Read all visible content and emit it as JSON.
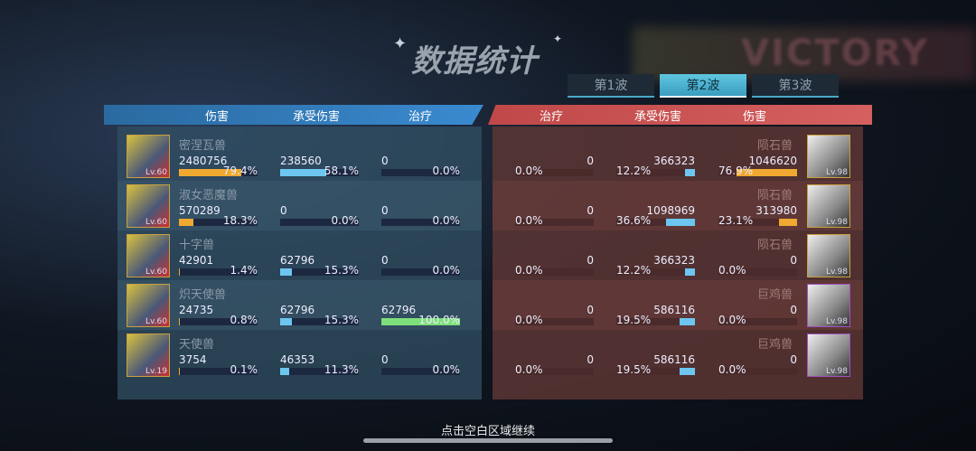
{
  "title": "数据统计",
  "tabs": [
    {
      "label": "第1波",
      "active": false
    },
    {
      "label": "第2波",
      "active": true
    },
    {
      "label": "第3波",
      "active": false
    }
  ],
  "background_text": "VICTORY",
  "left_headers": [
    "伤害",
    "承受伤害",
    "治疗"
  ],
  "right_headers": [
    "治疗",
    "承受伤害",
    "伤害"
  ],
  "colors": {
    "damage": "#f0a830",
    "taken": "#6cc6f0",
    "heal": "#7ee07a"
  },
  "allies": [
    {
      "name": "密涅瓦兽",
      "level": "Lv.60",
      "damage": "2480756",
      "damage_pct": "79.4%",
      "taken": "238560",
      "taken_pct": "58.1%",
      "heal": "0",
      "heal_pct": "0.0%"
    },
    {
      "name": "淑女恶魔兽",
      "level": "Lv.60",
      "damage": "570289",
      "damage_pct": "18.3%",
      "taken": "0",
      "taken_pct": "0.0%",
      "heal": "0",
      "heal_pct": "0.0%"
    },
    {
      "name": "十字兽",
      "level": "Lv.60",
      "damage": "42901",
      "damage_pct": "1.4%",
      "taken": "62796",
      "taken_pct": "15.3%",
      "heal": "0",
      "heal_pct": "0.0%"
    },
    {
      "name": "炽天使兽",
      "level": "Lv.60",
      "damage": "24735",
      "damage_pct": "0.8%",
      "taken": "62796",
      "taken_pct": "15.3%",
      "heal": "62796",
      "heal_pct": "100.0%"
    },
    {
      "name": "天使兽",
      "level": "Lv.19",
      "damage": "3754",
      "damage_pct": "0.1%",
      "taken": "46353",
      "taken_pct": "11.3%",
      "heal": "0",
      "heal_pct": "0.0%"
    }
  ],
  "enemies": [
    {
      "name": "陨石兽",
      "level": "Lv.98",
      "heal": "0",
      "heal_pct": "0.0%",
      "taken": "366323",
      "taken_pct": "12.2%",
      "damage": "1046620",
      "damage_pct": "76.9%"
    },
    {
      "name": "陨石兽",
      "level": "Lv.98",
      "heal": "0",
      "heal_pct": "0.0%",
      "taken": "1098969",
      "taken_pct": "36.6%",
      "damage": "313980",
      "damage_pct": "23.1%"
    },
    {
      "name": "陨石兽",
      "level": "Lv.98",
      "heal": "0",
      "heal_pct": "0.0%",
      "taken": "366323",
      "taken_pct": "12.2%",
      "damage": "0",
      "damage_pct": "0.0%"
    },
    {
      "name": "巨鸡兽",
      "level": "Lv.98",
      "heal": "0",
      "heal_pct": "0.0%",
      "taken": "586116",
      "taken_pct": "19.5%",
      "damage": "0",
      "damage_pct": "0.0%"
    },
    {
      "name": "巨鸡兽",
      "level": "Lv.98",
      "heal": "0",
      "heal_pct": "0.0%",
      "taken": "586116",
      "taken_pct": "19.5%",
      "damage": "0",
      "damage_pct": "0.0%"
    }
  ],
  "hint": "点击空白区域继续"
}
